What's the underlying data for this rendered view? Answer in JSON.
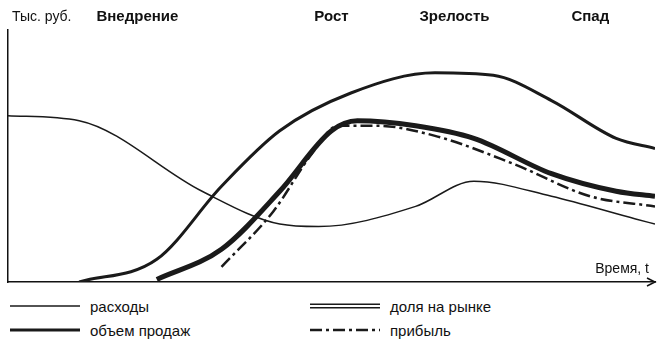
{
  "chart_data": {
    "type": "line",
    "x_label": "Время, t",
    "y_label": "Тыс. руб.",
    "xlim": [
      0,
      100
    ],
    "ylim": [
      0,
      100
    ],
    "xticks": [],
    "yticks": [],
    "tick_labels": false,
    "grid": false,
    "legend": "bottom",
    "stages": [
      {
        "label": "Внедрение",
        "x": 20
      },
      {
        "label": "Рост",
        "x": 50
      },
      {
        "label": "Зрелость",
        "x": 69
      },
      {
        "label": "Спад",
        "x": 90
      }
    ],
    "series": [
      {
        "name": "расходы",
        "color": "#1a1a1a",
        "line_style": "solid",
        "x": [
          0,
          11,
          30,
          42,
          48,
          63,
          72,
          84,
          97,
          100
        ],
        "values": [
          66,
          64,
          36,
          23,
          22,
          30,
          40,
          34,
          25,
          23
        ]
      },
      {
        "name": "объем продаж",
        "color": "#1a1a1a",
        "line_style": "thick",
        "x": [
          11,
          23,
          33,
          42,
          53,
          66,
          75,
          84,
          94,
          100
        ],
        "values": [
          0,
          9,
          38,
          60,
          75,
          83,
          82,
          72,
          57,
          53
        ]
      },
      {
        "name": "доля на рынке",
        "color": "#1a1a1a",
        "line_style": "double",
        "x": [
          23,
          33,
          42,
          50,
          54,
          63,
          72,
          84,
          94,
          100
        ],
        "values": [
          1,
          13,
          36,
          60,
          64,
          62,
          57,
          43,
          36,
          34
        ]
      },
      {
        "name": "прибыль",
        "color": "#1a1a1a",
        "line_style": "dashdot",
        "x": [
          33,
          41,
          47,
          51,
          57,
          66,
          78,
          90,
          100
        ],
        "values": [
          6,
          28,
          51,
          62,
          62,
          58,
          47,
          34,
          30
        ]
      }
    ]
  }
}
